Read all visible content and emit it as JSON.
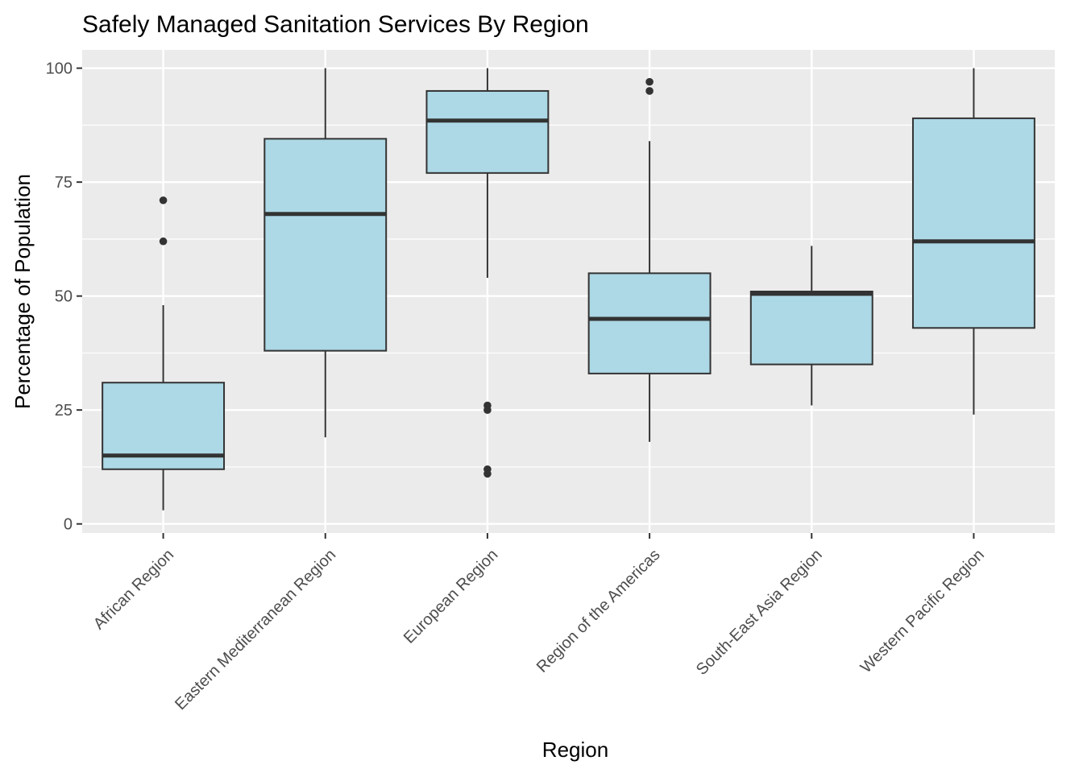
{
  "chart_data": {
    "type": "boxplot",
    "title": "Safely Managed Sanitation Services By Region",
    "xlabel": "Region",
    "ylabel": "Percentage of Population",
    "ylim": [
      -2,
      104
    ],
    "yticks": [
      0,
      25,
      50,
      75,
      100
    ],
    "grid": true,
    "legend": "none",
    "colors": {
      "panel": "#ebebeb",
      "grid": "#ffffff",
      "box_fill": "#add8e6",
      "box_stroke": "#333333",
      "tick_text": "#4d4d4d"
    },
    "categories": [
      "African Region",
      "Eastern Mediterranean Region",
      "European Region",
      "Region of the Americas",
      "South-East Asia Region",
      "Western Pacific Region"
    ],
    "boxes": [
      {
        "region": "African Region",
        "whisker_low": 3,
        "q1": 12,
        "median": 15,
        "q3": 31,
        "whisker_high": 48,
        "outliers": [
          62,
          71
        ]
      },
      {
        "region": "Eastern Mediterranean Region",
        "whisker_low": 19,
        "q1": 38,
        "median": 68,
        "q3": 84.5,
        "whisker_high": 100,
        "outliers": []
      },
      {
        "region": "European Region",
        "whisker_low": 54,
        "q1": 77,
        "median": 88.5,
        "q3": 95,
        "whisker_high": 100,
        "outliers": [
          11,
          12,
          25,
          26
        ]
      },
      {
        "region": "Region of the Americas",
        "whisker_low": 18,
        "q1": 33,
        "median": 45,
        "q3": 55,
        "whisker_high": 84,
        "outliers": [
          95,
          97
        ]
      },
      {
        "region": "South-East Asia Region",
        "whisker_low": 26,
        "q1": 35,
        "median": 50.5,
        "q3": 51,
        "whisker_high": 61,
        "outliers": []
      },
      {
        "region": "Western Pacific Region",
        "whisker_low": 24,
        "q1": 43,
        "median": 62,
        "q3": 89,
        "whisker_high": 100,
        "outliers": []
      }
    ]
  }
}
